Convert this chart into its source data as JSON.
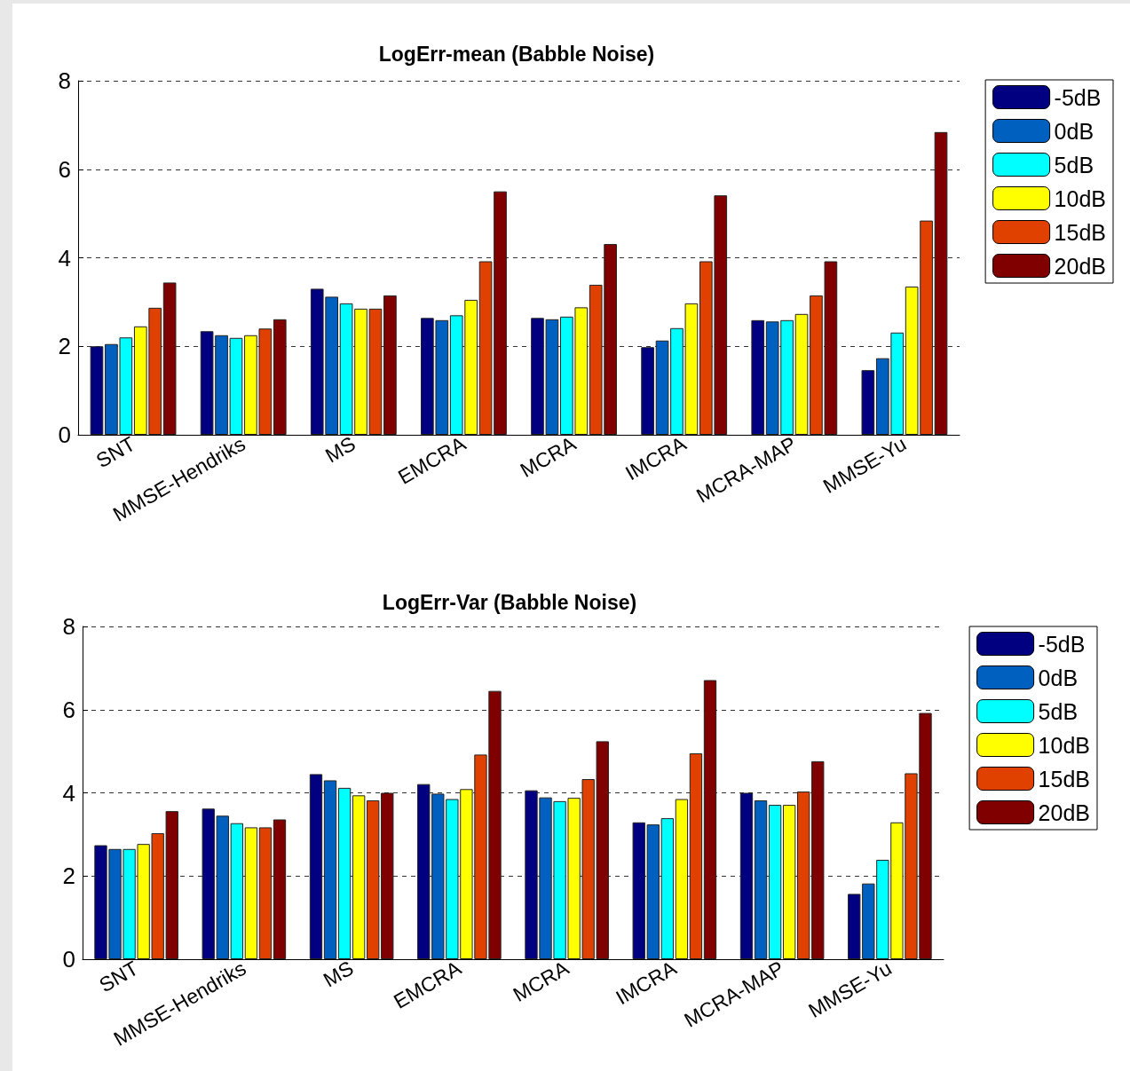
{
  "chart_data": [
    {
      "type": "bar",
      "title": "LogErr-mean (Babble Noise)",
      "categories": [
        "SNT",
        "MMSE-Hendriks",
        "MS",
        "EMCRA",
        "MCRA",
        "IMCRA",
        "MCRA-MAP",
        "MMSE-Yu"
      ],
      "series": [
        {
          "name": "-5dB",
          "color": "#000080",
          "values": [
            2.0,
            2.34,
            3.3,
            2.64,
            2.64,
            1.98,
            2.59,
            1.46
          ]
        },
        {
          "name": "0dB",
          "color": "#0060c0",
          "values": [
            2.05,
            2.25,
            3.12,
            2.59,
            2.61,
            2.13,
            2.56,
            1.73
          ]
        },
        {
          "name": "5dB",
          "color": "#00ffff",
          "values": [
            2.2,
            2.19,
            2.97,
            2.7,
            2.67,
            2.41,
            2.59,
            2.31
          ]
        },
        {
          "name": "10dB",
          "color": "#ffff00",
          "values": [
            2.45,
            2.25,
            2.85,
            3.05,
            2.88,
            2.97,
            2.73,
            3.35
          ]
        },
        {
          "name": "15dB",
          "color": "#e04000",
          "values": [
            2.87,
            2.4,
            2.85,
            3.92,
            3.39,
            3.92,
            3.15,
            4.84
          ]
        },
        {
          "name": "20dB",
          "color": "#800000",
          "values": [
            3.44,
            2.61,
            3.15,
            5.5,
            4.31,
            5.41,
            3.92,
            6.84
          ]
        }
      ],
      "ylim": [
        0,
        8
      ],
      "yticks": [
        0,
        2,
        4,
        6,
        8
      ],
      "grid": "y",
      "legend": "top right"
    },
    {
      "type": "bar",
      "title": "LogErr-Var (Babble Noise)",
      "categories": [
        "SNT",
        "MMSE-Hendriks",
        "MS",
        "EMCRA",
        "MCRA",
        "IMCRA",
        "MCRA-MAP",
        "MMSE-Yu"
      ],
      "series": [
        {
          "name": "-5dB",
          "color": "#000080",
          "values": [
            2.74,
            3.62,
            4.45,
            4.21,
            4.06,
            3.29,
            4.0,
            1.57
          ]
        },
        {
          "name": "0dB",
          "color": "#0060c0",
          "values": [
            2.65,
            3.45,
            4.3,
            3.98,
            3.89,
            3.24,
            3.82,
            1.82
          ]
        },
        {
          "name": "5dB",
          "color": "#00ffff",
          "values": [
            2.65,
            3.27,
            4.12,
            3.85,
            3.8,
            3.39,
            3.71,
            2.39
          ]
        },
        {
          "name": "10dB",
          "color": "#ffff00",
          "values": [
            2.77,
            3.17,
            3.94,
            4.09,
            3.88,
            3.85,
            3.71,
            3.29
          ]
        },
        {
          "name": "15dB",
          "color": "#e04000",
          "values": [
            3.03,
            3.17,
            3.82,
            4.92,
            4.33,
            4.95,
            4.03,
            4.47
          ]
        },
        {
          "name": "20dB",
          "color": "#800000",
          "values": [
            3.56,
            3.36,
            4.0,
            6.45,
            5.24,
            6.71,
            4.76,
            5.92
          ]
        }
      ],
      "ylim": [
        0,
        8
      ],
      "yticks": [
        0,
        2,
        4,
        6,
        8
      ],
      "grid": "y",
      "legend": "top right"
    }
  ]
}
